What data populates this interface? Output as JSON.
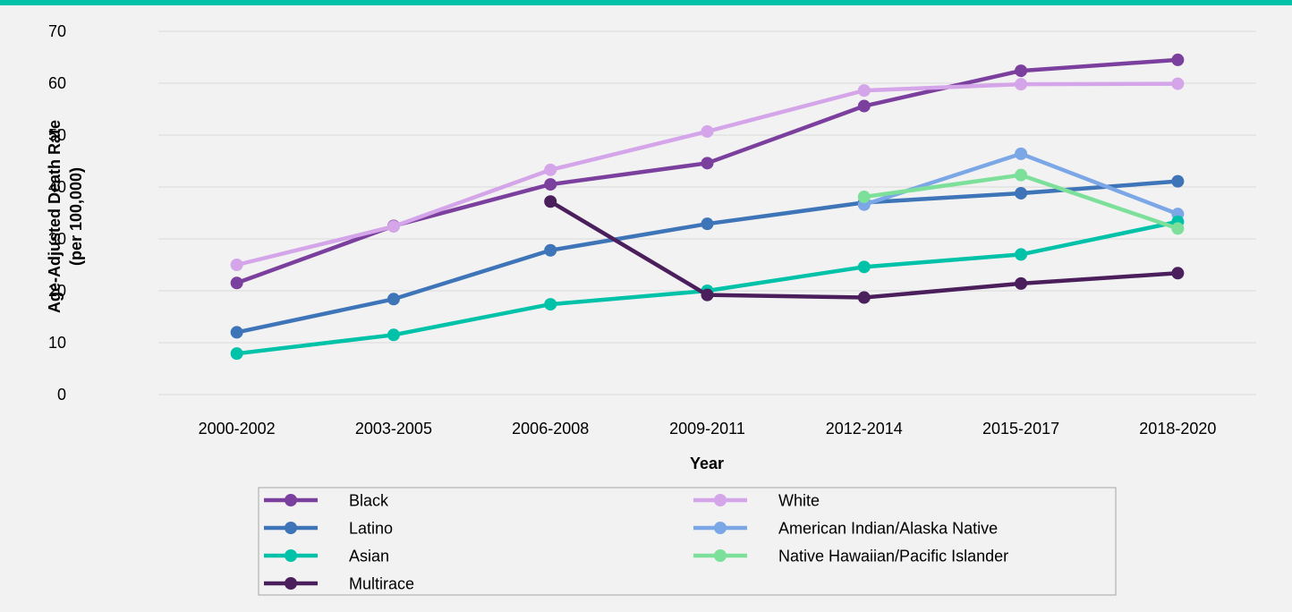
{
  "chart_data": {
    "type": "line",
    "title": "",
    "xlabel": "Year",
    "ylabel": "Age-Adjusted Death Rate",
    "ylabel_sub": "(per 100,000)",
    "ylim": [
      0,
      70
    ],
    "yticks": [
      0,
      10,
      20,
      30,
      40,
      50,
      60,
      70
    ],
    "grid": true,
    "legend_position": "bottom",
    "categories": [
      "2000-2002",
      "2003-2005",
      "2006-2008",
      "2009-2011",
      "2012-2014",
      "2015-2017",
      "2018-2020"
    ],
    "series": [
      {
        "name": "Black",
        "color": "#7b3f9e",
        "values": [
          21.5,
          32.5,
          40.5,
          44.6,
          55.6,
          62.4,
          64.5
        ]
      },
      {
        "name": "White",
        "color": "#d4a5e8",
        "values": [
          25.0,
          32.4,
          43.3,
          50.7,
          58.6,
          59.8,
          59.9
        ]
      },
      {
        "name": "Latino",
        "color": "#3e74b8",
        "values": [
          12.0,
          18.4,
          27.8,
          32.9,
          37.0,
          38.8,
          41.1
        ]
      },
      {
        "name": "American Indian/Alaska Native",
        "color": "#7ba7e6",
        "values": [
          null,
          null,
          null,
          null,
          36.6,
          46.4,
          34.8
        ]
      },
      {
        "name": "Asian",
        "color": "#00c2a8",
        "values": [
          7.9,
          11.5,
          17.4,
          20.0,
          24.6,
          27.0,
          33.3
        ]
      },
      {
        "name": "Native Hawaiian/Pacific Islander",
        "color": "#7de09a",
        "values": [
          null,
          null,
          null,
          null,
          38.1,
          42.3,
          32.0
        ]
      },
      {
        "name": "Multirace",
        "color": "#4a1f5c",
        "values": [
          null,
          null,
          37.2,
          19.2,
          18.7,
          21.4,
          23.4
        ]
      }
    ]
  }
}
